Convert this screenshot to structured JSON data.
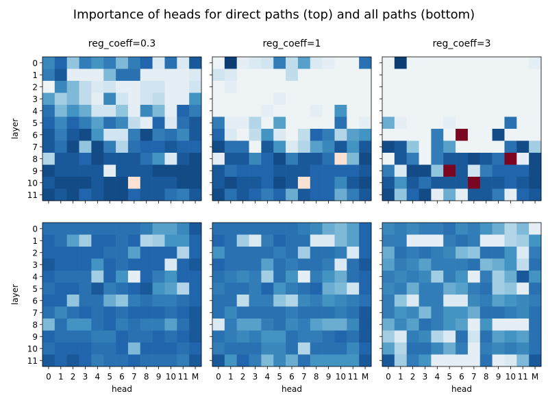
{
  "title": "Importance of heads for direct paths (top) and all paths (bottom)",
  "x_axis_label": "head",
  "y_axis_label": "layer",
  "x_ticks": [
    "0",
    "1",
    "2",
    "3",
    "4",
    "5",
    "6",
    "7",
    "8",
    "9",
    "10",
    "11",
    "M"
  ],
  "y_ticks": [
    "0",
    "1",
    "2",
    "3",
    "4",
    "5",
    "6",
    "7",
    "8",
    "9",
    "10",
    "11"
  ],
  "colormap": {
    "name": "RdBu",
    "stops": [
      "#053061",
      "#2166ac",
      "#4393c3",
      "#92c5de",
      "#d1e5f0",
      "#f7f7f7",
      "#fddbc7",
      "#f4a582",
      "#d6604d",
      "#b2182b",
      "#67001f"
    ]
  },
  "chart_data": [
    {
      "type": "heatmap",
      "row": "top",
      "subtitle": "reg_coeff=0.3",
      "vmin": -1,
      "vmax": 1,
      "values": [
        [
          -0.65,
          -0.8,
          -0.4,
          -0.7,
          -0.6,
          -0.7,
          -0.45,
          -0.7,
          -0.8,
          -0.15,
          -0.75,
          -0.15,
          -0.85
        ],
        [
          -0.7,
          -0.85,
          -0.1,
          -0.1,
          -0.1,
          -0.45,
          -0.75,
          -0.75,
          -0.1,
          -0.1,
          -0.1,
          -0.1,
          -0.15
        ],
        [
          -0.05,
          -0.65,
          -0.45,
          -0.25,
          -0.15,
          -0.2,
          -0.1,
          -0.1,
          -0.2,
          -0.2,
          -0.1,
          -0.1,
          -0.2
        ],
        [
          -0.55,
          -0.35,
          -0.45,
          -0.25,
          -0.1,
          -0.65,
          -0.2,
          -0.1,
          -0.2,
          -0.25,
          -0.1,
          -0.1,
          -0.6
        ],
        [
          -0.75,
          -0.45,
          -0.6,
          -0.5,
          -0.2,
          -0.2,
          -0.4,
          -0.1,
          -0.65,
          -0.45,
          -0.1,
          -0.8,
          -0.7
        ],
        [
          -0.8,
          -0.65,
          -0.8,
          -0.7,
          -0.55,
          -0.75,
          -0.65,
          -0.25,
          -0.1,
          -0.8,
          -0.15,
          -0.75,
          -0.85
        ],
        [
          -0.85,
          -0.7,
          -0.85,
          -0.9,
          -0.6,
          -0.2,
          -0.2,
          -0.7,
          -0.9,
          -0.7,
          -0.75,
          -0.65,
          -0.85
        ],
        [
          -0.85,
          -0.75,
          -0.9,
          -0.4,
          -0.9,
          -0.7,
          -0.3,
          -0.75,
          -0.8,
          -0.8,
          -0.85,
          -0.8,
          -0.8
        ],
        [
          -0.3,
          -0.85,
          -0.85,
          -0.8,
          -0.9,
          -0.85,
          -0.85,
          -0.85,
          -0.75,
          -0.6,
          -0.15,
          -0.85,
          -0.9
        ],
        [
          -0.9,
          -0.85,
          -0.85,
          -0.85,
          -0.85,
          -0.1,
          -0.85,
          -0.85,
          -0.85,
          -0.9,
          -0.9,
          -0.9,
          -0.9
        ],
        [
          -0.85,
          -0.9,
          -0.9,
          -0.9,
          -0.85,
          -0.9,
          -0.9,
          0.15,
          -0.85,
          -0.85,
          -0.85,
          -0.9,
          -0.9
        ],
        [
          -0.9,
          -0.85,
          -0.9,
          -0.8,
          -0.85,
          -0.9,
          -0.9,
          -0.8,
          -0.85,
          -0.85,
          -0.75,
          -0.7,
          -0.85
        ]
      ]
    },
    {
      "type": "heatmap",
      "row": "top",
      "subtitle": "reg_coeff=1",
      "vmin": -1,
      "vmax": 1,
      "values": [
        [
          -0.05,
          -0.95,
          -0.1,
          -0.15,
          -0.2,
          -0.7,
          -0.25,
          -0.55,
          -0.15,
          -0.1,
          -0.05,
          -0.05,
          -0.75
        ],
        [
          -0.2,
          -0.15,
          -0.05,
          -0.05,
          -0.05,
          -0.05,
          -0.25,
          -0.05,
          -0.05,
          -0.05,
          -0.05,
          -0.05,
          -0.05
        ],
        [
          -0.05,
          -0.1,
          -0.05,
          -0.05,
          -0.05,
          -0.05,
          -0.05,
          -0.05,
          -0.05,
          -0.05,
          -0.05,
          -0.05,
          -0.05
        ],
        [
          -0.05,
          -0.05,
          -0.05,
          -0.05,
          -0.05,
          -0.1,
          -0.05,
          -0.05,
          -0.05,
          -0.05,
          -0.05,
          -0.05,
          -0.05
        ],
        [
          -0.05,
          -0.05,
          -0.05,
          -0.05,
          -0.1,
          -0.05,
          -0.05,
          -0.05,
          -0.1,
          -0.05,
          -0.6,
          -0.05,
          -0.05
        ],
        [
          -0.7,
          -0.1,
          -0.1,
          -0.3,
          -0.05,
          -0.55,
          -0.05,
          -0.05,
          -0.05,
          -0.05,
          -0.75,
          -0.05,
          -0.1
        ],
        [
          -0.8,
          -0.15,
          -0.05,
          -0.25,
          -0.6,
          -0.15,
          -0.05,
          -0.25,
          -0.8,
          -0.7,
          -0.3,
          -0.55,
          -0.6
        ],
        [
          -0.9,
          -0.75,
          -0.75,
          -0.05,
          -0.85,
          -0.6,
          -0.15,
          -0.3,
          -0.55,
          -0.65,
          -0.85,
          -0.6,
          -0.85
        ],
        [
          -0.1,
          -0.85,
          -0.85,
          -0.65,
          -0.8,
          -0.9,
          -0.7,
          -0.85,
          -0.85,
          -0.75,
          0.15,
          -0.45,
          -0.9
        ],
        [
          -0.85,
          -0.75,
          -0.8,
          -0.8,
          -0.8,
          -0.85,
          -0.85,
          -0.85,
          -0.8,
          -0.8,
          -0.8,
          -0.8,
          -0.85
        ],
        [
          -0.85,
          -0.9,
          -0.85,
          -0.85,
          -0.8,
          -0.9,
          -0.85,
          0.15,
          -0.8,
          -0.8,
          -0.65,
          -0.85,
          -0.9
        ],
        [
          -0.9,
          -0.75,
          -0.85,
          -0.8,
          -0.7,
          -0.8,
          -0.5,
          -0.85,
          -0.8,
          -0.8,
          -0.5,
          -0.7,
          -0.85
        ]
      ]
    },
    {
      "type": "heatmap",
      "row": "top",
      "subtitle": "reg_coeff=3",
      "vmin": -1,
      "vmax": 1,
      "values": [
        [
          -0.05,
          -0.95,
          -0.05,
          -0.05,
          -0.05,
          -0.05,
          -0.05,
          -0.05,
          -0.05,
          -0.05,
          -0.05,
          -0.05,
          -0.1
        ],
        [
          -0.05,
          -0.05,
          -0.05,
          -0.05,
          -0.05,
          -0.05,
          -0.05,
          -0.05,
          -0.05,
          -0.05,
          -0.05,
          -0.05,
          -0.05
        ],
        [
          -0.05,
          -0.05,
          -0.05,
          -0.05,
          -0.05,
          -0.05,
          -0.05,
          -0.05,
          -0.05,
          -0.05,
          -0.05,
          -0.05,
          -0.05
        ],
        [
          -0.05,
          -0.05,
          -0.05,
          -0.05,
          -0.05,
          -0.05,
          -0.05,
          -0.05,
          -0.05,
          -0.05,
          -0.05,
          -0.05,
          -0.05
        ],
        [
          -0.05,
          -0.05,
          -0.05,
          -0.05,
          -0.05,
          -0.05,
          -0.05,
          -0.05,
          -0.05,
          -0.05,
          -0.05,
          -0.05,
          -0.05
        ],
        [
          -0.5,
          -0.1,
          -0.05,
          -0.05,
          -0.05,
          -0.1,
          -0.05,
          -0.05,
          -0.05,
          -0.05,
          -0.75,
          -0.05,
          -0.05
        ],
        [
          -0.05,
          -0.05,
          -0.05,
          -0.05,
          -0.7,
          -0.05,
          0.95,
          -0.05,
          -0.05,
          -0.9,
          -0.05,
          -0.05,
          -0.05
        ],
        [
          -0.9,
          -0.85,
          -0.4,
          -0.05,
          -0.7,
          -0.55,
          -0.05,
          -0.05,
          -0.05,
          -0.05,
          -0.75,
          -0.9,
          -0.35
        ],
        [
          -0.05,
          -0.85,
          -0.7,
          -0.05,
          -0.7,
          -0.85,
          -0.85,
          -0.9,
          -0.85,
          -0.75,
          0.95,
          -0.1,
          -0.9
        ],
        [
          -0.7,
          -0.15,
          -0.9,
          -0.9,
          -0.4,
          0.95,
          -0.85,
          -0.2,
          -0.7,
          -0.8,
          -0.8,
          -0.8,
          -0.9
        ],
        [
          -0.85,
          -0.6,
          -0.85,
          -0.75,
          -0.85,
          -0.85,
          -0.85,
          0.95,
          -0.85,
          -0.85,
          -0.8,
          -0.85,
          -0.9
        ],
        [
          -0.9,
          -0.4,
          -0.8,
          -0.9,
          -0.1,
          -0.5,
          -0.1,
          -0.85,
          -0.85,
          -0.7,
          -0.1,
          -0.8,
          -0.85
        ]
      ]
    },
    {
      "type": "heatmap",
      "row": "bottom",
      "subtitle": "",
      "vmin": -1,
      "vmax": 1,
      "values": [
        [
          -0.75,
          -0.75,
          -0.75,
          -0.75,
          -0.75,
          -0.75,
          -0.75,
          -0.75,
          -0.7,
          -0.55,
          -0.55,
          -0.65,
          -0.85
        ],
        [
          -0.8,
          -0.75,
          -0.55,
          -0.35,
          -0.8,
          -0.8,
          -0.75,
          -0.8,
          -0.3,
          -0.35,
          -0.6,
          -0.6,
          -0.8
        ],
        [
          -0.8,
          -0.8,
          -0.8,
          -0.8,
          -0.8,
          -0.75,
          -0.75,
          -0.55,
          -0.8,
          -0.8,
          -0.8,
          -0.3,
          -0.8
        ],
        [
          -0.85,
          -0.8,
          -0.8,
          -0.8,
          -0.6,
          -0.8,
          -0.75,
          -0.8,
          -0.8,
          -0.8,
          -0.15,
          -0.8,
          -0.85
        ],
        [
          -0.8,
          -0.75,
          -0.75,
          -0.75,
          -0.35,
          -0.8,
          -0.6,
          -0.1,
          -0.8,
          -0.7,
          -0.6,
          -0.8,
          -0.8
        ],
        [
          -0.75,
          -0.8,
          -0.8,
          -0.75,
          -0.85,
          -0.7,
          -0.75,
          -0.8,
          -0.85,
          -0.6,
          -0.55,
          -0.3,
          -0.8
        ],
        [
          -0.8,
          -0.8,
          -0.4,
          -0.75,
          -0.75,
          -0.5,
          -0.4,
          -0.7,
          -0.75,
          -0.7,
          -0.7,
          -0.75,
          -0.8
        ],
        [
          -0.75,
          -0.65,
          -0.75,
          -0.8,
          -0.75,
          -0.8,
          -0.75,
          -0.8,
          -0.8,
          -0.8,
          -0.75,
          -0.8,
          -0.85
        ],
        [
          -0.45,
          -0.75,
          -0.6,
          -0.6,
          -0.75,
          -0.8,
          -0.7,
          -0.75,
          -0.7,
          -0.7,
          -0.55,
          -0.75,
          -0.85
        ],
        [
          -0.8,
          -0.75,
          -0.75,
          -0.75,
          -0.7,
          -0.7,
          -0.8,
          -0.75,
          -0.75,
          -0.8,
          -0.75,
          -0.8,
          -0.85
        ],
        [
          -0.75,
          -0.8,
          -0.8,
          -0.8,
          -0.75,
          -0.75,
          -0.8,
          -0.45,
          -0.8,
          -0.8,
          -0.8,
          -0.75,
          -0.8
        ],
        [
          -0.85,
          -0.8,
          -0.85,
          -0.8,
          -0.7,
          -0.75,
          -0.75,
          -0.8,
          -0.75,
          -0.75,
          -0.75,
          -0.7,
          -0.85
        ]
      ]
    },
    {
      "type": "heatmap",
      "row": "bottom",
      "subtitle": "",
      "vmin": -1,
      "vmax": 1,
      "values": [
        [
          -0.75,
          -0.75,
          -0.75,
          -0.75,
          -0.75,
          -0.75,
          -0.75,
          -0.7,
          -0.65,
          -0.5,
          -0.45,
          -0.55,
          -0.8
        ],
        [
          -0.8,
          -0.75,
          -0.35,
          -0.15,
          -0.7,
          -0.8,
          -0.75,
          -0.75,
          -0.15,
          -0.15,
          -0.45,
          -0.55,
          -0.8
        ],
        [
          -0.6,
          -0.75,
          -0.75,
          -0.75,
          -0.75,
          -0.7,
          -0.75,
          -0.35,
          -0.75,
          -0.75,
          -0.7,
          -0.15,
          -0.8
        ],
        [
          -0.8,
          -0.75,
          -0.75,
          -0.75,
          -0.55,
          -0.75,
          -0.7,
          -0.75,
          -0.75,
          -0.7,
          -0.15,
          -0.75,
          -0.85
        ],
        [
          -0.75,
          -0.7,
          -0.65,
          -0.7,
          -0.35,
          -0.75,
          -0.6,
          -0.1,
          -0.7,
          -0.6,
          -0.5,
          -0.75,
          -0.8
        ],
        [
          -0.7,
          -0.75,
          -0.75,
          -0.7,
          -0.8,
          -0.6,
          -0.7,
          -0.75,
          -0.8,
          -0.5,
          -0.45,
          -0.2,
          -0.8
        ],
        [
          -0.75,
          -0.75,
          -0.25,
          -0.7,
          -0.7,
          -0.4,
          -0.3,
          -0.65,
          -0.7,
          -0.6,
          -0.65,
          -0.7,
          -0.75
        ],
        [
          -0.75,
          -0.65,
          -0.75,
          -0.75,
          -0.75,
          -0.75,
          -0.7,
          -0.75,
          -0.75,
          -0.75,
          -0.7,
          -0.75,
          -0.85
        ],
        [
          -0.15,
          -0.7,
          -0.55,
          -0.55,
          -0.7,
          -0.75,
          -0.65,
          -0.7,
          -0.55,
          -0.5,
          -0.5,
          -0.65,
          -0.85
        ],
        [
          -0.75,
          -0.7,
          -0.65,
          -0.7,
          -0.6,
          -0.6,
          -0.75,
          -0.7,
          -0.7,
          -0.75,
          -0.8,
          -0.75,
          -0.85
        ],
        [
          -0.7,
          -0.75,
          -0.75,
          -0.75,
          -0.65,
          -0.65,
          -0.75,
          -0.3,
          -0.75,
          -0.75,
          -0.75,
          -0.65,
          -0.8
        ],
        [
          -0.85,
          -0.6,
          -0.8,
          -0.7,
          -0.45,
          -0.65,
          -0.5,
          -0.75,
          -0.6,
          -0.6,
          -0.6,
          -0.6,
          -0.85
        ]
      ]
    },
    {
      "type": "heatmap",
      "row": "bottom",
      "subtitle": "",
      "vmin": -1,
      "vmax": 1,
      "values": [
        [
          -0.65,
          -0.7,
          -0.65,
          -0.7,
          -0.7,
          -0.75,
          -0.65,
          -0.7,
          -0.6,
          -0.5,
          -0.3,
          -0.45,
          -0.1
        ],
        [
          -0.7,
          -0.7,
          -0.1,
          -0.1,
          -0.1,
          -0.7,
          -0.75,
          -0.7,
          -0.1,
          -0.1,
          -0.3,
          -0.35,
          -0.6
        ],
        [
          -0.5,
          -0.75,
          -0.7,
          -0.75,
          -0.7,
          -0.65,
          -0.45,
          -0.4,
          -0.75,
          -0.75,
          -0.6,
          -0.15,
          -0.7
        ],
        [
          -0.55,
          -0.7,
          -0.65,
          -0.55,
          -0.7,
          -0.7,
          -0.7,
          -0.75,
          -0.45,
          -0.5,
          -0.6,
          -0.25,
          -0.75
        ],
        [
          -0.7,
          -0.65,
          -0.7,
          -0.65,
          -0.35,
          -0.7,
          -0.6,
          -0.1,
          -0.7,
          -0.35,
          -0.5,
          -0.85,
          -0.6
        ],
        [
          -0.65,
          -0.7,
          -0.5,
          -0.7,
          -0.7,
          -0.5,
          -0.55,
          -0.7,
          -0.75,
          -0.35,
          -0.4,
          -0.1,
          -0.75
        ],
        [
          -0.7,
          -0.4,
          -0.15,
          -0.7,
          -0.7,
          -0.15,
          -0.15,
          -0.65,
          -0.7,
          -0.55,
          -0.6,
          -0.65,
          -0.7
        ],
        [
          -0.7,
          -0.6,
          -0.65,
          -0.45,
          -0.7,
          -0.6,
          -0.6,
          -0.5,
          -0.75,
          -0.75,
          -0.7,
          -0.65,
          -0.75
        ],
        [
          -0.5,
          -0.65,
          -0.55,
          -0.75,
          -0.7,
          -0.6,
          -0.55,
          -0.1,
          -0.6,
          -0.1,
          -0.1,
          -0.1,
          -0.75
        ],
        [
          -0.35,
          -0.15,
          -0.7,
          -0.65,
          -0.3,
          -0.15,
          -0.75,
          -0.2,
          -0.75,
          -0.55,
          -0.6,
          -0.55,
          -0.75
        ],
        [
          -0.55,
          -0.3,
          -0.75,
          -0.75,
          -0.65,
          -0.5,
          -0.7,
          -0.1,
          -0.7,
          -0.65,
          -0.7,
          -0.65,
          -0.75
        ],
        [
          -0.85,
          -0.35,
          -0.7,
          -0.6,
          -0.1,
          -0.1,
          -0.1,
          -0.1,
          -0.75,
          -0.1,
          -0.15,
          -0.45,
          -0.85
        ]
      ]
    }
  ]
}
